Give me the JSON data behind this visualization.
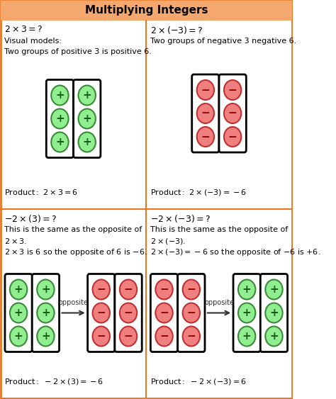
{
  "title": "Multiplying Integers",
  "title_bg": "#F5A86E",
  "border_color": "#E87722",
  "bg_color": "#FFFFFF",
  "green_fill": "#90EE90",
  "green_edge": "#3A8A3A",
  "green_text": "#1A5C1A",
  "red_fill": "#F08080",
  "red_edge": "#C03030",
  "red_text": "#8B0000",
  "arrow_color": "#333333",
  "quadrants": [
    {
      "eq": "$2 \\times 3 =?$",
      "lines": [
        "Visual models:",
        "Two groups of positive 3 is positive 6."
      ],
      "product": "$\\mathrm{Product:}\\ 2 \\times 3 = 6$",
      "left_sign": "pos",
      "right_sign": null,
      "has_arrow": false
    },
    {
      "eq": "$2 \\times (-3) =?$",
      "lines": [
        "Two groups of negative 3 negative 6."
      ],
      "product": "$\\mathrm{Product:}\\ 2 \\times (-3) = -6$",
      "left_sign": "neg",
      "right_sign": null,
      "has_arrow": false
    },
    {
      "eq": "$-2 \\times (3) =?$",
      "lines": [
        "This is the same as the opposite of",
        "$2 \\times 3.$",
        "$2 \\times 3$ is 6 so the opposite of 6 is $-6.$"
      ],
      "product": "$\\mathrm{Product:}\\ -2 \\times (3) = -6$",
      "left_sign": "pos",
      "right_sign": "neg",
      "has_arrow": true
    },
    {
      "eq": "$-2 \\times (-3) =?$",
      "lines": [
        "This is the same as the opposite of",
        "$2\\times(-3).$",
        "$2\\times(-3)=-6$ so the opposite of $-6$ is $+6.$"
      ],
      "product": "$\\mathrm{Product:}\\ -2 \\times (-3) = 6$",
      "left_sign": "neg",
      "right_sign": "pos",
      "has_arrow": true
    }
  ],
  "figw": 4.74,
  "figh": 5.63,
  "dpi": 100
}
